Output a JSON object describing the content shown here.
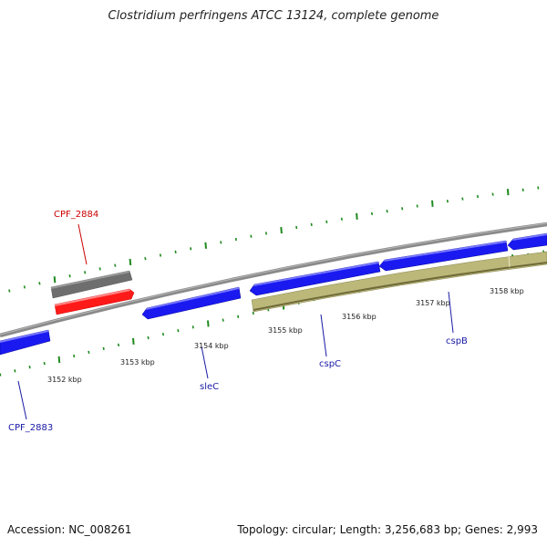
{
  "title": "Clostridium perfringens ATCC 13124, complete genome",
  "footer": {
    "accession": "Accession: NC_008261",
    "stats": "Topology: circular; Length: 3,256,683 bp; Genes: 2,993"
  },
  "ruler": {
    "labels": [
      "3152 kbp",
      "3153 kbp",
      "3154 kbp",
      "3155 kbp",
      "3156 kbp",
      "3157 kbp",
      "3158 kbp"
    ]
  },
  "gene_labels": [
    {
      "name": "CPF_2884",
      "color": "#cc0000"
    },
    {
      "name": "CPF_2883",
      "color": "#1a1aa6"
    },
    {
      "name": "sleC",
      "color": "#1a1aa6"
    },
    {
      "name": "cspC",
      "color": "#1a1aa6"
    },
    {
      "name": "cspB",
      "color": "#1a1aa6"
    }
  ],
  "colors": {
    "forward_gene": "#1a1af0",
    "reverse_gene_highlight": "#ff1a1a",
    "gray_feature": "#707070",
    "tan_feature": "#bcb87a",
    "backbone": "#8a8a8a",
    "tick": "#1f8a1f"
  }
}
